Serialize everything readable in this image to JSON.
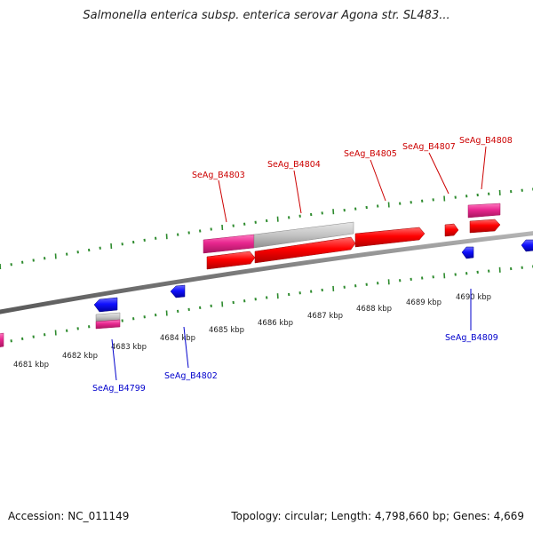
{
  "title": "Salmonella enterica subsp. enterica serovar Agona str. SL483...",
  "footer": {
    "accession": "Accession: NC_011149",
    "stats": "Topology: circular; Length: 4,798,660 bp; Genes: 4,669"
  },
  "colors": {
    "forward_label": "#cc0000",
    "reverse_label": "#0000cc",
    "forward_cds": "#ff0000",
    "reverse_cds": "#1a1aff",
    "gene_bar": "#e8278f",
    "rna_bar": "#c0c0c0",
    "tick": "#2e8b2e",
    "backbone": "#8a8a8a"
  },
  "kbp_ticks": [
    "4681 kbp",
    "4682 kbp",
    "4683 kbp",
    "4684 kbp",
    "4685 kbp",
    "4686 kbp",
    "4687 kbp",
    "4688 kbp",
    "4689 kbp",
    "4690 kbp"
  ],
  "forward_labels": [
    "SeAg_B4803",
    "SeAg_B4804",
    "SeAg_B4805",
    "SeAg_B4807",
    "SeAg_B4808"
  ],
  "reverse_labels": [
    "SeAg_B4799",
    "SeAg_B4802",
    "SeAg_B4809"
  ]
}
